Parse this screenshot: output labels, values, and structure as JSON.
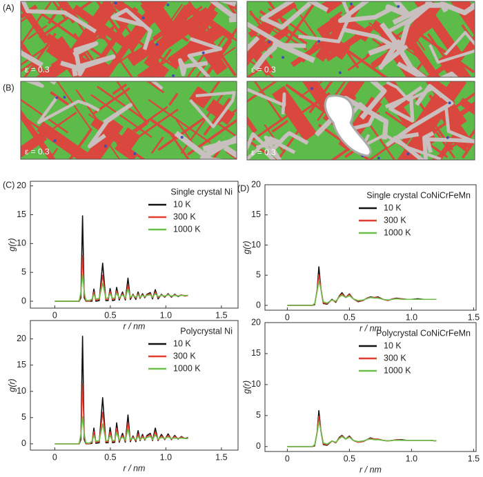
{
  "snapshots": [
    {
      "label": "(A)",
      "strain_labels": [
        "ε = 0.3",
        "ε = 0.3"
      ]
    },
    {
      "label": "(B)",
      "strain_labels": [
        "ε = 0.3",
        "ε = 0.3"
      ]
    }
  ],
  "chart_data": [
    {
      "type": "line",
      "panel_label": "(C)",
      "legend_title": "Single crystal Ni",
      "xlabel": "r / nm",
      "ylabel": "g(r)",
      "xlim": [
        -0.22,
        1.65
      ],
      "ylim": [
        -1.2,
        20.8
      ],
      "xticks": [
        0,
        0.5,
        {
          "value": 1,
          "label": "1.0"
        },
        1.5
      ],
      "yticks": [
        0,
        5,
        10,
        15,
        20
      ],
      "x": [
        0,
        0.2,
        0.22,
        0.235,
        0.25,
        0.265,
        0.28,
        0.31,
        0.335,
        0.352,
        0.37,
        0.4,
        0.431,
        0.46,
        0.48,
        0.498,
        0.52,
        0.54,
        0.557,
        0.58,
        0.61,
        0.635,
        0.659,
        0.68,
        0.704,
        0.73,
        0.75,
        0.768,
        0.79,
        0.81,
        0.83,
        0.86,
        0.88,
        0.905,
        0.93,
        0.96,
        0.99,
        1.02,
        1.05,
        1.08,
        1.11,
        1.14,
        1.17,
        1.2
      ],
      "series": [
        {
          "name": "10 K",
          "color": "#111111",
          "values": [
            0,
            0,
            0,
            0.6,
            14.8,
            0.6,
            0,
            0,
            0,
            2.1,
            0,
            0.1,
            6.6,
            0.1,
            0.1,
            2.2,
            0.1,
            0.2,
            2.4,
            0.2,
            1.6,
            0.2,
            4.0,
            0.3,
            1.2,
            0.3,
            1.6,
            0.5,
            1.3,
            0.6,
            1.2,
            1.5,
            0.4,
            2.0,
            0.4,
            1.2,
            0.7,
            1.3,
            0.7,
            1.2,
            0.8,
            1.1,
            0.9,
            1.0
          ]
        },
        {
          "name": "300 K",
          "color": "#e53a2f",
          "values": [
            0,
            0,
            0,
            1.2,
            7.9,
            1.2,
            0.05,
            0,
            0.2,
            1.6,
            0.2,
            0.3,
            4.5,
            0.3,
            0.3,
            1.7,
            0.3,
            0.4,
            1.8,
            0.4,
            1.3,
            0.4,
            2.8,
            0.5,
            1.1,
            0.5,
            1.3,
            0.6,
            1.1,
            0.7,
            1.1,
            1.3,
            0.6,
            1.6,
            0.6,
            1.1,
            0.8,
            1.2,
            0.8,
            1.1,
            0.9,
            1.1,
            0.9,
            1.0
          ]
        },
        {
          "name": "1000 K",
          "color": "#6cc04a",
          "values": [
            0,
            0,
            0.1,
            1.6,
            4.7,
            1.6,
            0.2,
            0.1,
            0.4,
            1.2,
            0.4,
            0.5,
            3.1,
            0.5,
            0.6,
            1.3,
            0.5,
            0.6,
            1.4,
            0.6,
            1.1,
            0.6,
            2.1,
            0.7,
            1.0,
            0.7,
            1.1,
            0.7,
            1.0,
            0.8,
            1.0,
            1.1,
            0.7,
            1.3,
            0.8,
            1.0,
            0.9,
            1.1,
            0.9,
            1.0,
            0.9,
            1.0,
            1.0,
            1.0
          ]
        }
      ]
    },
    {
      "type": "line",
      "panel_label": "(D)",
      "legend_title": "Single crystal CoNiCrFeMn",
      "xlabel": "r / nm",
      "ylabel": "g(r)",
      "xlim": [
        -0.18,
        1.52
      ],
      "ylim": [
        -0.8,
        20
      ],
      "xticks": [
        0,
        0.5,
        {
          "value": 1,
          "label": "1.0"
        },
        1.5
      ],
      "yticks": [
        0,
        5,
        10,
        15,
        20
      ],
      "x": [
        0,
        0.2,
        0.22,
        0.24,
        0.254,
        0.27,
        0.29,
        0.32,
        0.36,
        0.39,
        0.42,
        0.44,
        0.47,
        0.5,
        0.53,
        0.57,
        0.61,
        0.64,
        0.67,
        0.7,
        0.73,
        0.77,
        0.81,
        0.85,
        0.88,
        0.92,
        0.96,
        1.0,
        1.05,
        1.1,
        1.15,
        1.2
      ],
      "series": [
        {
          "name": "10 K",
          "color": "#111111",
          "values": [
            0,
            0,
            0.1,
            2.5,
            6.4,
            2.8,
            0.3,
            0.2,
            1.0,
            0.5,
            1.6,
            2.1,
            1.3,
            1.9,
            1.1,
            0.6,
            0.8,
            1.2,
            1.4,
            1.3,
            1.4,
            1.0,
            0.8,
            1.1,
            1.2,
            1.1,
            1.0,
            1.0,
            1.1,
            1.0,
            1.0,
            1.0
          ]
        },
        {
          "name": "300 K",
          "color": "#e53a2f",
          "values": [
            0,
            0,
            0.2,
            2.4,
            5.1,
            2.9,
            0.4,
            0.3,
            0.9,
            0.6,
            1.5,
            1.9,
            1.3,
            1.8,
            1.1,
            0.7,
            0.8,
            1.2,
            1.3,
            1.3,
            1.3,
            1.0,
            0.8,
            1.1,
            1.1,
            1.1,
            1.0,
            1.0,
            1.0,
            1.0,
            1.0,
            1.0
          ]
        },
        {
          "name": "1000 K",
          "color": "#6cc04a",
          "values": [
            0,
            0,
            0.3,
            2.3,
            4.0,
            2.8,
            0.6,
            0.4,
            0.9,
            0.7,
            1.4,
            1.7,
            1.3,
            1.6,
            1.1,
            0.8,
            0.9,
            1.1,
            1.3,
            1.2,
            1.2,
            1.0,
            0.9,
            1.0,
            1.1,
            1.0,
            1.0,
            1.0,
            1.0,
            1.0,
            1.0,
            1.0
          ]
        }
      ]
    },
    {
      "type": "line",
      "legend_title": "Polycrystal Ni",
      "xlabel": "r / nm",
      "ylabel": "g(r)",
      "xlim": [
        -0.22,
        1.65
      ],
      "ylim": [
        -1.2,
        23.5
      ],
      "xticks": [
        0,
        0.5,
        {
          "value": 1,
          "label": "1.0"
        },
        1.5
      ],
      "yticks": [
        0,
        5,
        10,
        15,
        20
      ],
      "x": [
        0,
        0.2,
        0.22,
        0.235,
        0.25,
        0.265,
        0.28,
        0.31,
        0.335,
        0.352,
        0.37,
        0.4,
        0.431,
        0.46,
        0.48,
        0.498,
        0.52,
        0.54,
        0.557,
        0.58,
        0.61,
        0.635,
        0.659,
        0.68,
        0.704,
        0.73,
        0.75,
        0.768,
        0.79,
        0.81,
        0.83,
        0.86,
        0.88,
        0.905,
        0.93,
        0.96,
        0.99,
        1.02,
        1.05,
        1.08,
        1.11,
        1.14,
        1.17,
        1.2
      ],
      "series": [
        {
          "name": "10 K",
          "color": "#111111",
          "values": [
            0,
            0,
            0,
            0.8,
            20.5,
            0.8,
            0,
            0,
            0.1,
            3.0,
            0.1,
            0.2,
            8.8,
            0.2,
            0.2,
            3.1,
            0.2,
            0.3,
            4.0,
            0.3,
            2.0,
            0.3,
            5.5,
            0.4,
            1.5,
            0.4,
            2.5,
            0.6,
            1.8,
            0.7,
            1.6,
            2.0,
            0.6,
            3.0,
            0.6,
            1.8,
            0.8,
            1.9,
            0.8,
            1.6,
            0.9,
            1.4,
            1.0,
            1.2
          ]
        },
        {
          "name": "300 K",
          "color": "#e53a2f",
          "values": [
            0,
            0,
            0,
            1.5,
            11.5,
            1.5,
            0.05,
            0,
            0.3,
            2.3,
            0.3,
            0.4,
            6.0,
            0.4,
            0.4,
            2.3,
            0.4,
            0.5,
            3.0,
            0.5,
            1.6,
            0.5,
            4.0,
            0.6,
            1.3,
            0.6,
            1.9,
            0.7,
            1.5,
            0.8,
            1.4,
            1.7,
            0.7,
            2.3,
            0.7,
            1.5,
            0.9,
            1.6,
            0.9,
            1.4,
            1.0,
            1.3,
            1.0,
            1.1
          ]
        },
        {
          "name": "1000 K",
          "color": "#6cc04a",
          "values": [
            0,
            0,
            0.1,
            1.9,
            5.2,
            1.9,
            0.2,
            0.1,
            0.5,
            1.6,
            0.5,
            0.6,
            3.8,
            0.6,
            0.7,
            1.6,
            0.6,
            0.7,
            2.2,
            0.7,
            1.3,
            0.7,
            2.8,
            0.8,
            1.1,
            0.8,
            1.4,
            0.8,
            1.2,
            0.9,
            1.2,
            1.4,
            0.8,
            1.7,
            0.9,
            1.2,
            1.0,
            1.3,
            1.0,
            1.1,
            1.0,
            1.1,
            1.0,
            1.0
          ]
        }
      ]
    },
    {
      "type": "line",
      "legend_title": "Polycrystal CoNiCrFeMn",
      "xlabel": "r / nm",
      "ylabel": "g(r)",
      "xlim": [
        -0.18,
        1.52
      ],
      "ylim": [
        -0.8,
        20
      ],
      "xticks": [
        0,
        0.5,
        {
          "value": 1,
          "label": "1.0"
        },
        1.5
      ],
      "yticks": [
        0,
        5,
        10,
        15,
        20
      ],
      "x": [
        0,
        0.2,
        0.22,
        0.24,
        0.254,
        0.27,
        0.29,
        0.32,
        0.36,
        0.39,
        0.42,
        0.44,
        0.47,
        0.5,
        0.53,
        0.57,
        0.61,
        0.64,
        0.67,
        0.7,
        0.73,
        0.77,
        0.81,
        0.85,
        0.88,
        0.92,
        0.96,
        1.0,
        1.05,
        1.1,
        1.15,
        1.2
      ],
      "series": [
        {
          "name": "10 K",
          "color": "#111111",
          "values": [
            0,
            0,
            0.1,
            2.3,
            5.8,
            2.6,
            0.3,
            0.2,
            0.9,
            0.6,
            1.5,
            1.8,
            1.2,
            1.7,
            1.0,
            0.7,
            0.8,
            1.1,
            1.4,
            1.2,
            1.2,
            1.0,
            0.9,
            1.0,
            1.1,
            1.1,
            1.0,
            1.0,
            1.0,
            1.0,
            1.0,
            0.9
          ]
        },
        {
          "name": "300 K",
          "color": "#e53a2f",
          "values": [
            0,
            0,
            0.2,
            2.3,
            4.9,
            2.7,
            0.4,
            0.3,
            0.9,
            0.6,
            1.4,
            1.7,
            1.2,
            1.6,
            1.0,
            0.7,
            0.8,
            1.1,
            1.3,
            1.2,
            1.2,
            1.0,
            0.9,
            1.0,
            1.1,
            1.0,
            1.0,
            1.0,
            1.0,
            1.0,
            1.0,
            0.9
          ]
        },
        {
          "name": "1000 K",
          "color": "#6cc04a",
          "values": [
            0,
            0,
            0.3,
            2.2,
            4.0,
            2.7,
            0.6,
            0.4,
            0.9,
            0.7,
            1.3,
            1.6,
            1.2,
            1.5,
            1.0,
            0.8,
            0.9,
            1.1,
            1.2,
            1.1,
            1.1,
            1.0,
            0.9,
            1.0,
            1.0,
            1.0,
            1.0,
            1.0,
            1.0,
            1.0,
            1.0,
            0.9
          ]
        }
      ]
    }
  ]
}
